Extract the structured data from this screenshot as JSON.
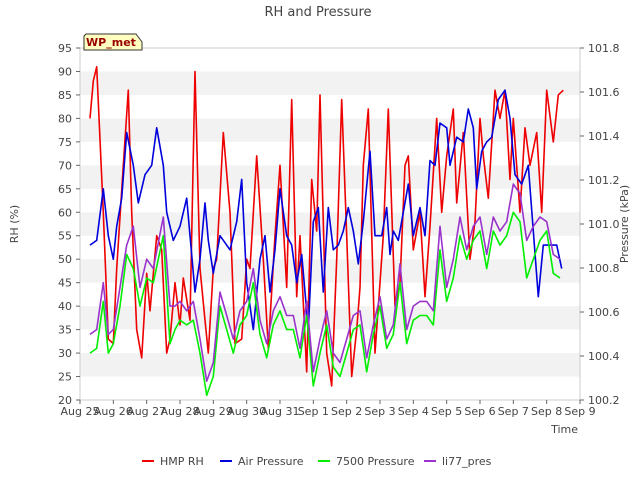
{
  "chart_data": {
    "type": "line",
    "title": "RH and Pressure",
    "station_label": "WP_met",
    "xlabel": "Time",
    "ylabel_left": "RH (%)",
    "ylabel_right": "Pressure (kPa)",
    "x_ticks": [
      "Aug 25",
      "Aug 26",
      "Aug 27",
      "Aug 28",
      "Aug 29",
      "Aug 30",
      "Aug 31",
      "Sep 1",
      "Sep 2",
      "Sep 3",
      "Sep 4",
      "Sep 5",
      "Sep 6",
      "Sep 7",
      "Sep 8",
      "Sep 9"
    ],
    "x_range_days": [
      0,
      15
    ],
    "ylim_left": [
      20,
      95
    ],
    "yticks_left": [
      20,
      25,
      30,
      35,
      40,
      45,
      50,
      55,
      60,
      65,
      70,
      75,
      80,
      85,
      90,
      95
    ],
    "ylim_right": [
      100.2,
      101.8
    ],
    "yticks_right": [
      "100.2",
      "100.4",
      "100.6",
      "100.8",
      "101.0",
      "101.2",
      "101.4",
      "101.6",
      "101.8"
    ],
    "grid": "horizontal-bands",
    "legend_position": "bottom",
    "series": [
      {
        "name": "HMP RH",
        "color": "#ee0000",
        "axis": "left",
        "x": [
          0.3,
          0.4,
          0.5,
          0.7,
          0.85,
          1.0,
          1.1,
          1.3,
          1.45,
          1.55,
          1.7,
          1.85,
          2.0,
          2.1,
          2.3,
          2.45,
          2.6,
          2.7,
          2.85,
          3.0,
          3.1,
          3.3,
          3.45,
          3.6,
          3.75,
          3.85,
          4.0,
          4.1,
          4.3,
          4.5,
          4.65,
          4.85,
          5.0,
          5.1,
          5.3,
          5.5,
          5.65,
          5.85,
          6.0,
          6.2,
          6.35,
          6.5,
          6.6,
          6.8,
          6.95,
          7.1,
          7.2,
          7.4,
          7.55,
          7.7,
          7.85,
          8.0,
          8.15,
          8.3,
          8.4,
          8.5,
          8.65,
          8.85,
          9.0,
          9.1,
          9.25,
          9.45,
          9.6,
          9.75,
          9.85,
          10.0,
          10.2,
          10.35,
          10.5,
          10.7,
          10.85,
          11.0,
          11.2,
          11.3,
          11.5,
          11.7,
          11.85,
          12.0,
          12.1,
          12.25,
          12.45,
          12.6,
          12.75,
          12.9,
          13.0,
          13.2,
          13.35,
          13.5,
          13.7,
          13.85,
          14.0,
          14.2,
          14.35,
          14.5
        ],
        "y": [
          80,
          88,
          91,
          60,
          33,
          32,
          48,
          70,
          86,
          60,
          35,
          29,
          47,
          39,
          55,
          52,
          30,
          33,
          45,
          36,
          46,
          37,
          90,
          48,
          37,
          30,
          48,
          50,
          77,
          60,
          32,
          33,
          50,
          48,
          72,
          50,
          31,
          55,
          70,
          44,
          84,
          42,
          55,
          26,
          67,
          56,
          85,
          30,
          23,
          50,
          84,
          55,
          25,
          35,
          44,
          70,
          82,
          30,
          45,
          55,
          82,
          40,
          45,
          70,
          72,
          52,
          60,
          42,
          57,
          80,
          60,
          72,
          82,
          62,
          77,
          50,
          58,
          80,
          72,
          63,
          86,
          80,
          86,
          67,
          80,
          60,
          78,
          70,
          77,
          60,
          86,
          75,
          85,
          86
        ]
      },
      {
        "name": "Air Pressure",
        "color": "#0000dd",
        "axis": "left",
        "x": [
          0.3,
          0.5,
          0.7,
          0.85,
          1.0,
          1.1,
          1.25,
          1.4,
          1.6,
          1.75,
          1.95,
          2.15,
          2.3,
          2.5,
          2.6,
          2.8,
          3.0,
          3.2,
          3.45,
          3.6,
          3.75,
          3.85,
          4.0,
          4.2,
          4.5,
          4.7,
          4.85,
          5.0,
          5.2,
          5.4,
          5.55,
          5.7,
          5.85,
          6.0,
          6.2,
          6.35,
          6.5,
          6.65,
          6.85,
          7.0,
          7.15,
          7.3,
          7.45,
          7.6,
          7.75,
          7.9,
          8.05,
          8.2,
          8.35,
          8.5,
          8.7,
          8.85,
          9.05,
          9.2,
          9.3,
          9.4,
          9.55,
          9.7,
          9.85,
          10.0,
          10.2,
          10.35,
          10.5,
          10.65,
          10.8,
          11.0,
          11.1,
          11.3,
          11.5,
          11.65,
          11.8,
          11.9,
          12.05,
          12.2,
          12.35,
          12.55,
          12.75,
          12.9,
          13.05,
          13.25,
          13.45,
          13.6,
          13.75,
          13.9,
          14.1,
          14.2,
          14.3,
          14.45
        ],
        "y": [
          53,
          54,
          65,
          55,
          50,
          57,
          63,
          77,
          70,
          62,
          68,
          70,
          78,
          70,
          60,
          54,
          57,
          63,
          43,
          50,
          62,
          54,
          47,
          55,
          52,
          58,
          67,
          45,
          35,
          50,
          55,
          43,
          52,
          65,
          55,
          53,
          45,
          51,
          35,
          58,
          61,
          43,
          61,
          52,
          53,
          56,
          61,
          56,
          49,
          58,
          73,
          55,
          55,
          61,
          51,
          56,
          54,
          60,
          66,
          55,
          61,
          55,
          71,
          70,
          79,
          78,
          70,
          76,
          75,
          82,
          78,
          65,
          73,
          75,
          76,
          84,
          86,
          80,
          68,
          66,
          70,
          56,
          42,
          53,
          53,
          53,
          53,
          48
        ]
      },
      {
        "name": "7500 Pressure",
        "color": "#00ee00",
        "axis": "left",
        "x": [
          0.3,
          0.5,
          0.7,
          0.85,
          1.0,
          1.2,
          1.4,
          1.6,
          1.8,
          2.0,
          2.2,
          2.5,
          2.7,
          2.85,
          3.0,
          3.2,
          3.4,
          3.6,
          3.8,
          4.0,
          4.2,
          4.4,
          4.6,
          4.8,
          5.0,
          5.2,
          5.4,
          5.6,
          5.8,
          6.0,
          6.2,
          6.4,
          6.6,
          6.8,
          7.0,
          7.2,
          7.4,
          7.6,
          7.8,
          8.0,
          8.2,
          8.4,
          8.6,
          8.8,
          9.0,
          9.2,
          9.4,
          9.6,
          9.8,
          10.0,
          10.2,
          10.4,
          10.6,
          10.8,
          11.0,
          11.2,
          11.4,
          11.6,
          11.8,
          12.0,
          12.2,
          12.4,
          12.6,
          12.8,
          13.0,
          13.2,
          13.4,
          13.6,
          13.8,
          14.0,
          14.2,
          14.4
        ],
        "y": [
          30,
          31,
          41,
          30,
          32,
          40,
          51,
          48,
          40,
          46,
          45,
          55,
          32,
          35,
          37,
          36,
          37,
          30,
          21,
          25,
          40,
          35,
          30,
          36,
          38,
          45,
          34,
          29,
          36,
          39,
          35,
          35,
          29,
          38,
          23,
          30,
          36,
          27,
          25,
          30,
          35,
          36,
          26,
          34,
          40,
          31,
          34,
          45,
          32,
          37,
          38,
          38,
          36,
          52,
          41,
          46,
          55,
          50,
          54,
          56,
          48,
          56,
          53,
          55,
          60,
          58,
          46,
          50,
          54,
          56,
          47,
          46
        ]
      },
      {
        "name": "li77_pres",
        "color": "#9933cc",
        "axis": "left",
        "x": [
          0.3,
          0.5,
          0.7,
          0.85,
          1.0,
          1.2,
          1.4,
          1.6,
          1.8,
          2.0,
          2.2,
          2.5,
          2.7,
          2.85,
          3.0,
          3.2,
          3.4,
          3.6,
          3.8,
          4.0,
          4.2,
          4.4,
          4.6,
          4.8,
          5.0,
          5.2,
          5.4,
          5.6,
          5.8,
          6.0,
          6.2,
          6.4,
          6.6,
          6.8,
          7.0,
          7.2,
          7.4,
          7.6,
          7.8,
          8.0,
          8.2,
          8.4,
          8.6,
          8.8,
          9.0,
          9.2,
          9.4,
          9.6,
          9.8,
          10.0,
          10.2,
          10.4,
          10.6,
          10.8,
          11.0,
          11.2,
          11.4,
          11.6,
          11.8,
          12.0,
          12.2,
          12.4,
          12.6,
          12.8,
          13.0,
          13.2,
          13.4,
          13.6,
          13.8,
          14.0,
          14.2,
          14.4
        ],
        "y": [
          34,
          35,
          45,
          34,
          35,
          44,
          53,
          57,
          44,
          50,
          48,
          59,
          40,
          40,
          41,
          39,
          41,
          33,
          24,
          28,
          43,
          38,
          33,
          39,
          41,
          48,
          37,
          32,
          39,
          42,
          38,
          38,
          31,
          41,
          26,
          33,
          39,
          30,
          28,
          33,
          38,
          39,
          29,
          36,
          42,
          33,
          36,
          49,
          35,
          40,
          41,
          41,
          39,
          57,
          44,
          50,
          59,
          52,
          57,
          59,
          51,
          59,
          56,
          58,
          66,
          64,
          54,
          57,
          59,
          58,
          51,
          50
        ]
      }
    ]
  }
}
